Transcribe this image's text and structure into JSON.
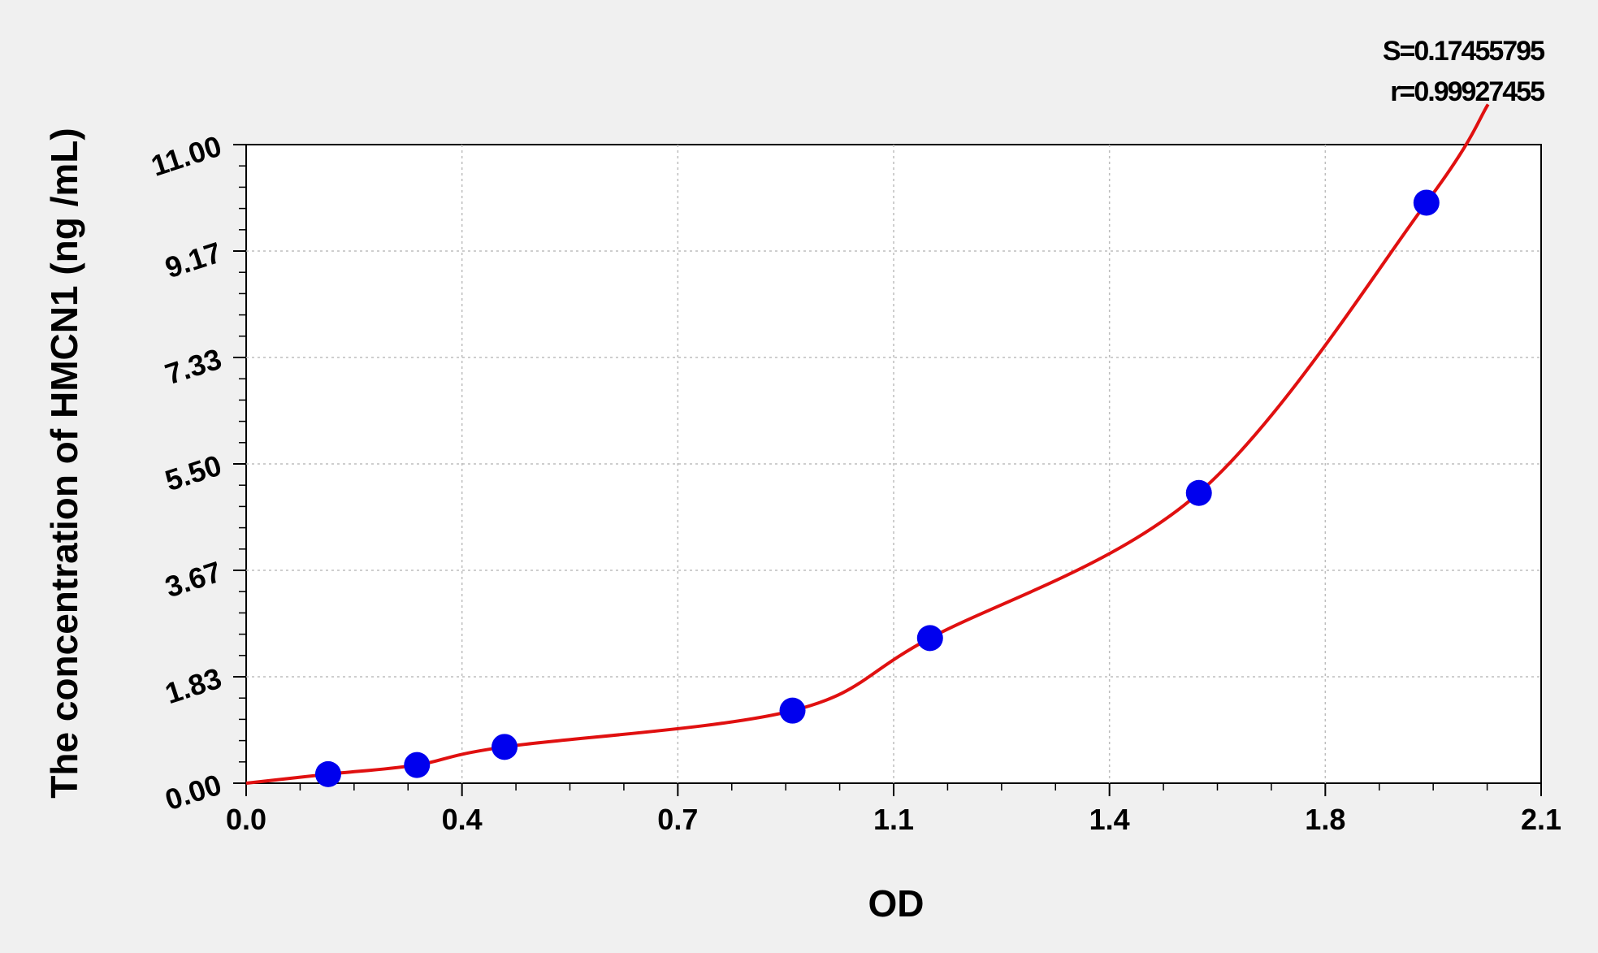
{
  "chart_data": {
    "type": "scatter",
    "xlabel": "OD",
    "ylabel": "The concentration of HMCN1 (ng /mL)",
    "xlim": [
      0.0,
      2.1
    ],
    "ylim": [
      0.0,
      11.0
    ],
    "x_ticks": [
      "0.0",
      "0.4",
      "0.7",
      "1.1",
      "1.4",
      "1.8",
      "2.1"
    ],
    "y_ticks": [
      "0.00",
      "1.83",
      "3.67",
      "5.50",
      "7.33",
      "9.17",
      "11.00"
    ],
    "grid": true,
    "stats": {
      "s_label": "S=0.17455795",
      "r_label": "r=0.99927455"
    },
    "points": {
      "color": "#0000ee",
      "x": [
        0.133,
        0.277,
        0.419,
        0.886,
        1.109,
        1.545,
        1.914
      ],
      "y": [
        0.156,
        0.313,
        0.625,
        1.25,
        2.5,
        5.0,
        10.0
      ]
    },
    "fit_curve": {
      "color": "#e01010",
      "type": "4PL fit"
    }
  }
}
